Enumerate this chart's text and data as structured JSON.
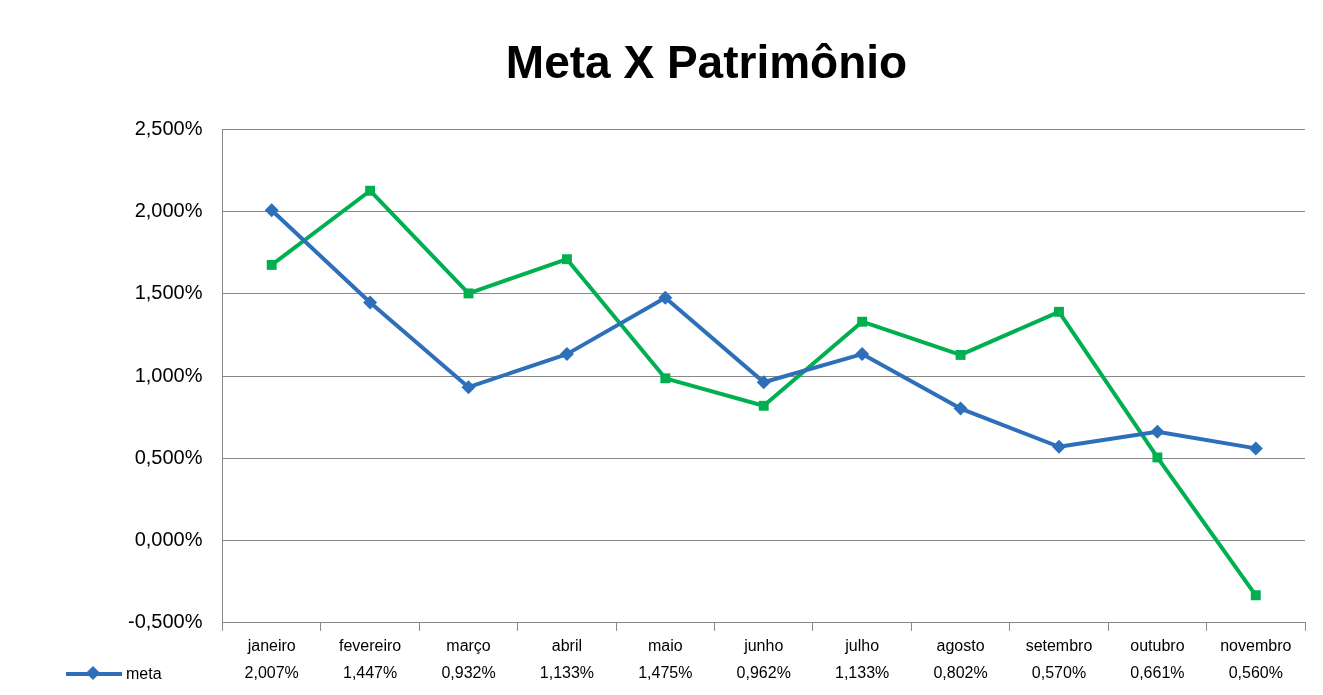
{
  "chart_data": {
    "type": "line",
    "title": "Meta X Patrimônio",
    "categories": [
      "janeiro",
      "fevereiro",
      "março",
      "abril",
      "maio",
      "junho",
      "julho",
      "agosto",
      "setembro",
      "outubro",
      "novembro"
    ],
    "series": [
      {
        "name": "meta",
        "color": "#2e6fba",
        "marker": "diamond",
        "values": [
          2.007,
          1.447,
          0.932,
          1.133,
          1.475,
          0.962,
          1.133,
          0.802,
          0.57,
          0.661,
          0.56
        ],
        "value_labels": [
          "2,007%",
          "1,447%",
          "0,932%",
          "1,133%",
          "1,475%",
          "0,962%",
          "1,133%",
          "0,802%",
          "0,570%",
          "0,661%",
          "0,560%"
        ]
      },
      {
        "color": "#00b050",
        "marker": "square",
        "values": [
          1.675,
          2.126,
          1.502,
          1.71,
          0.986,
          0.819,
          1.33,
          1.128,
          1.39,
          0.505,
          -0.333
        ]
      }
    ],
    "ylim": [
      -0.5,
      2.5
    ],
    "yticks": [
      {
        "value": -0.5,
        "label": "-0,500%"
      },
      {
        "value": 0,
        "label": "0,000%"
      },
      {
        "value": 0.5,
        "label": "0,500%"
      },
      {
        "value": 1,
        "label": "1,000%"
      },
      {
        "value": 1.5,
        "label": "1,500%"
      },
      {
        "value": 2,
        "label": "2,000%"
      },
      {
        "value": 2.5,
        "label": "2,500%"
      }
    ],
    "grid": "y",
    "legend": "bottom",
    "line_style": "solid"
  }
}
